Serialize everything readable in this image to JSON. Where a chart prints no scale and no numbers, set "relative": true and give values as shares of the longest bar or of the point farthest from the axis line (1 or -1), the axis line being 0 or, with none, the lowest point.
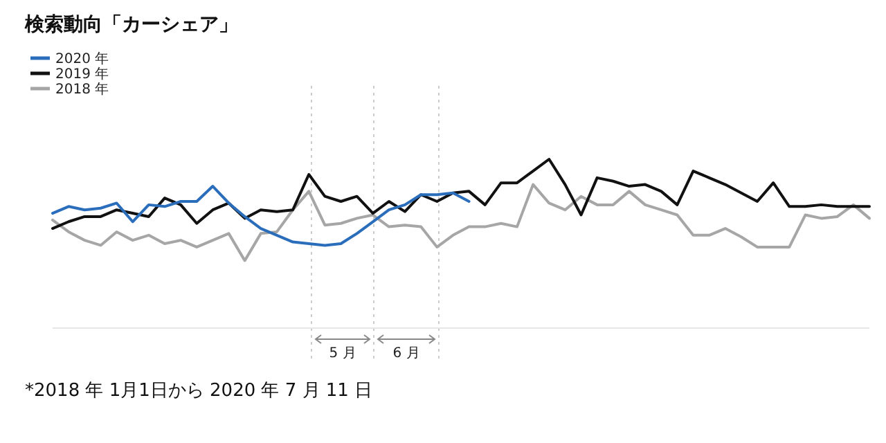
{
  "chart_data": {
    "type": "line",
    "title": "検索動向「カーシェア」",
    "relative": true,
    "legend": "top left",
    "grid": "x",
    "categories": [
      null,
      null,
      null,
      null,
      null,
      null,
      null,
      null,
      null,
      null,
      null,
      null,
      null,
      null,
      null,
      null,
      null,
      null,
      null,
      null,
      null,
      null,
      null,
      null,
      null,
      null,
      null,
      null,
      null,
      null,
      null,
      null,
      null,
      null,
      null,
      null,
      null,
      null,
      null,
      null,
      null,
      null,
      null,
      null,
      null,
      null,
      null,
      null,
      null,
      null,
      null,
      null
    ],
    "series": [
      {
        "name": "2020 年",
        "color": "#2a6ebb",
        "values": [
          0.68,
          0.72,
          0.7,
          0.71,
          0.74,
          0.63,
          0.73,
          0.72,
          0.75,
          0.75,
          0.84,
          0.74,
          0.66,
          0.59,
          0.55,
          0.51,
          0.5,
          0.49,
          0.5,
          0.56,
          0.63,
          0.7,
          0.73,
          0.79,
          0.79,
          0.8,
          0.75,
          null,
          null,
          null,
          null,
          null,
          null,
          null,
          null,
          null,
          null,
          null,
          null,
          null,
          null,
          null,
          null,
          null,
          null,
          null,
          null,
          null,
          null,
          null,
          null,
          null
        ]
      },
      {
        "name": "2019 年",
        "color": "#111111",
        "values": [
          0.59,
          0.63,
          0.66,
          0.66,
          0.7,
          0.68,
          0.66,
          0.77,
          0.73,
          0.62,
          0.7,
          0.74,
          0.65,
          0.7,
          0.69,
          0.7,
          0.91,
          0.78,
          0.75,
          0.78,
          0.68,
          0.75,
          0.69,
          0.79,
          0.75,
          0.8,
          0.81,
          0.73,
          0.86,
          0.86,
          0.93,
          1,
          0.85,
          0.67,
          0.89,
          0.87,
          0.84,
          0.85,
          0.81,
          0.73,
          0.93,
          0.89,
          0.85,
          0.8,
          0.75,
          0.86,
          0.72,
          0.72,
          0.73,
          0.72,
          0.72,
          0.72
        ]
      },
      {
        "name": "2018 年",
        "color": "#a6a6a6",
        "values": [
          0.64,
          0.57,
          0.52,
          0.49,
          0.57,
          0.52,
          0.55,
          0.5,
          0.52,
          0.48,
          0.52,
          0.56,
          0.4,
          0.56,
          0.57,
          0.7,
          0.81,
          0.61,
          0.62,
          0.65,
          0.67,
          0.6,
          0.61,
          0.6,
          0.48,
          0.55,
          0.6,
          0.6,
          0.62,
          0.6,
          0.85,
          0.74,
          0.7,
          0.78,
          0.73,
          0.73,
          0.81,
          0.73,
          0.7,
          0.67,
          0.55,
          0.55,
          0.59,
          0.54,
          0.48,
          0.48,
          0.48,
          0.67,
          0.65,
          0.66,
          0.73,
          0.65
        ]
      }
    ],
    "annotations": [
      "5 月",
      "6 月",
      "*2018 年 1月1日から 2020 年 7 月 11 日"
    ]
  }
}
